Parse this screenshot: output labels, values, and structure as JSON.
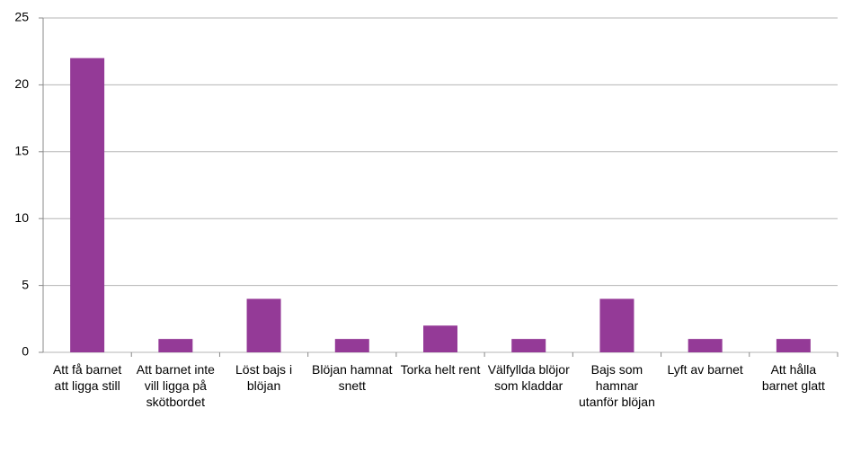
{
  "chart_data": {
    "type": "bar",
    "categories": [
      "Att få barnet att ligga still",
      "Att barnet inte vill ligga på skötbordet",
      "Löst bajs i blöjan",
      "Blöjan hamnat snett",
      "Torka helt rent",
      "Välfyllda blöjor som kladdar",
      "Bajs som hamnar utanför blöjan",
      "Lyft av barnet",
      "Att hålla barnet glatt"
    ],
    "values": [
      22,
      1,
      4,
      1,
      2,
      1,
      4,
      1,
      1
    ],
    "color": "#943a97",
    "ylim": [
      0,
      25
    ],
    "yticks": [
      0,
      5,
      10,
      15,
      20,
      25
    ],
    "grid": true
  }
}
